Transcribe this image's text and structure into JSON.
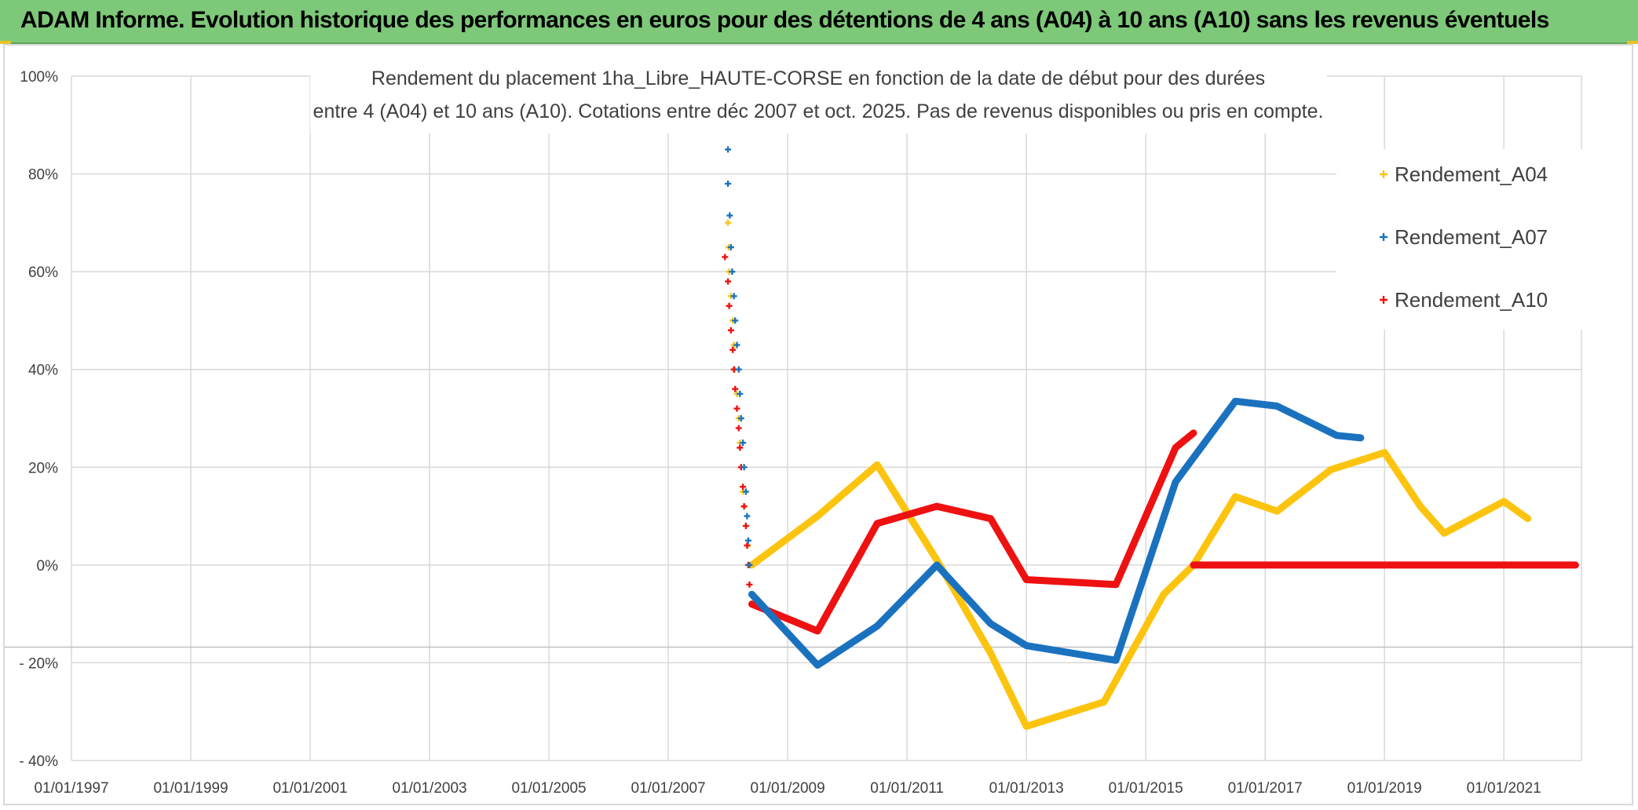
{
  "banner": {
    "title": "ADAM Informe. Evolution historique des performances en euros pour des détentions de 4 ans (A04) à 10 ans (A10) sans les revenus éventuels"
  },
  "colors": {
    "banner_bg": "#7dc879",
    "A04": "#fcc40f",
    "A07": "#1a72bf",
    "A10": "#ee1111",
    "grid": "#d9d9d9",
    "text": "#404040"
  },
  "chart_data": {
    "type": "scatter",
    "title_lines": [
      "Rendement du placement 1ha_Libre_HAUTE-CORSE en fonction de la date de début pour des durées",
      "entre 4 (A04) et 10 ans (A10). Cotations entre déc 2007 et oct. 2025. Pas de revenus disponibles ou pris en compte."
    ],
    "xlabel": "",
    "ylabel": "",
    "x_range": [
      1997.0,
      2022.3
    ],
    "x_ticks": [
      1997,
      1999,
      2001,
      2003,
      2005,
      2007,
      2009,
      2011,
      2013,
      2015,
      2017,
      2019,
      2021
    ],
    "x_tick_labels": [
      "01/01/1997",
      "01/01/1999",
      "01/01/2001",
      "01/01/2003",
      "01/01/2005",
      "01/01/2007",
      "01/01/2009",
      "01/01/2011",
      "01/01/2013",
      "01/01/2015",
      "01/01/2017",
      "01/01/2019",
      "01/01/2021"
    ],
    "y_range": [
      -40,
      100
    ],
    "y_ticks": [
      -40,
      -20,
      0,
      20,
      40,
      60,
      80,
      100
    ],
    "y_tick_labels": [
      "- 40%",
      "- 20%",
      "0%",
      "20%",
      "40%",
      "60%",
      "80%",
      "100%"
    ],
    "grid": true,
    "legend_position": "top-right",
    "series": [
      {
        "name": "Rendement_A04",
        "points": [
          [
            2008.0,
            70
          ],
          [
            2008.01,
            65
          ],
          [
            2008.02,
            60
          ],
          [
            2008.05,
            55
          ],
          [
            2008.08,
            50
          ],
          [
            2008.1,
            45
          ],
          [
            2008.12,
            40
          ],
          [
            2008.15,
            35
          ],
          [
            2008.18,
            30
          ],
          [
            2008.2,
            25
          ],
          [
            2008.22,
            20
          ],
          [
            2008.25,
            15
          ],
          [
            2008.27,
            12
          ],
          [
            2008.3,
            8
          ],
          [
            2008.33,
            4
          ],
          [
            2008.4,
            0
          ],
          [
            2009.5,
            10
          ],
          [
            2010.5,
            20.5
          ],
          [
            2011.5,
            1
          ],
          [
            2012.4,
            -18
          ],
          [
            2013.0,
            -33
          ],
          [
            2014.3,
            -28
          ],
          [
            2015.3,
            -6
          ],
          [
            2015.8,
            0
          ],
          [
            2016.5,
            14
          ],
          [
            2017.2,
            11
          ],
          [
            2018.1,
            19.5
          ],
          [
            2019.0,
            23
          ],
          [
            2019.6,
            12
          ],
          [
            2020.0,
            6.5
          ],
          [
            2021.0,
            13
          ],
          [
            2021.4,
            9.5
          ]
        ]
      },
      {
        "name": "Rendement_A07",
        "points": [
          [
            2008.0,
            85
          ],
          [
            2008.0,
            78
          ],
          [
            2008.03,
            71.5
          ],
          [
            2008.05,
            65
          ],
          [
            2008.07,
            60
          ],
          [
            2008.1,
            55
          ],
          [
            2008.12,
            50
          ],
          [
            2008.15,
            45
          ],
          [
            2008.18,
            40
          ],
          [
            2008.2,
            35
          ],
          [
            2008.22,
            30
          ],
          [
            2008.25,
            25
          ],
          [
            2008.27,
            20
          ],
          [
            2008.3,
            15
          ],
          [
            2008.32,
            10
          ],
          [
            2008.34,
            5
          ],
          [
            2008.36,
            0
          ],
          [
            2008.4,
            -6
          ],
          [
            2009.5,
            -20.5
          ],
          [
            2010.5,
            -12.5
          ],
          [
            2011.5,
            0
          ],
          [
            2012.4,
            -12
          ],
          [
            2013.0,
            -16.5
          ],
          [
            2014.5,
            -19.5
          ],
          [
            2015.5,
            17
          ],
          [
            2016.5,
            33.5
          ],
          [
            2017.2,
            32.5
          ],
          [
            2018.2,
            26.5
          ],
          [
            2018.6,
            26
          ]
        ]
      },
      {
        "name": "Rendement_A10",
        "points": [
          [
            2007.95,
            63
          ],
          [
            2008.0,
            58
          ],
          [
            2008.02,
            53
          ],
          [
            2008.05,
            48
          ],
          [
            2008.08,
            44
          ],
          [
            2008.1,
            40
          ],
          [
            2008.12,
            36
          ],
          [
            2008.15,
            32
          ],
          [
            2008.18,
            28
          ],
          [
            2008.2,
            24
          ],
          [
            2008.22,
            20
          ],
          [
            2008.25,
            16
          ],
          [
            2008.27,
            12
          ],
          [
            2008.3,
            8
          ],
          [
            2008.32,
            4
          ],
          [
            2008.34,
            0
          ],
          [
            2008.36,
            -4
          ],
          [
            2008.4,
            -8
          ],
          [
            2009.5,
            -13.5
          ],
          [
            2010.5,
            8.5
          ],
          [
            2011.5,
            12
          ],
          [
            2012.4,
            9.5
          ],
          [
            2013.0,
            -3
          ],
          [
            2014.5,
            -4
          ],
          [
            2015.5,
            24
          ],
          [
            2015.8,
            27
          ],
          [
            2015.8,
            0
          ],
          [
            2022.0,
            0
          ],
          [
            2022.2,
            0
          ]
        ]
      }
    ]
  }
}
